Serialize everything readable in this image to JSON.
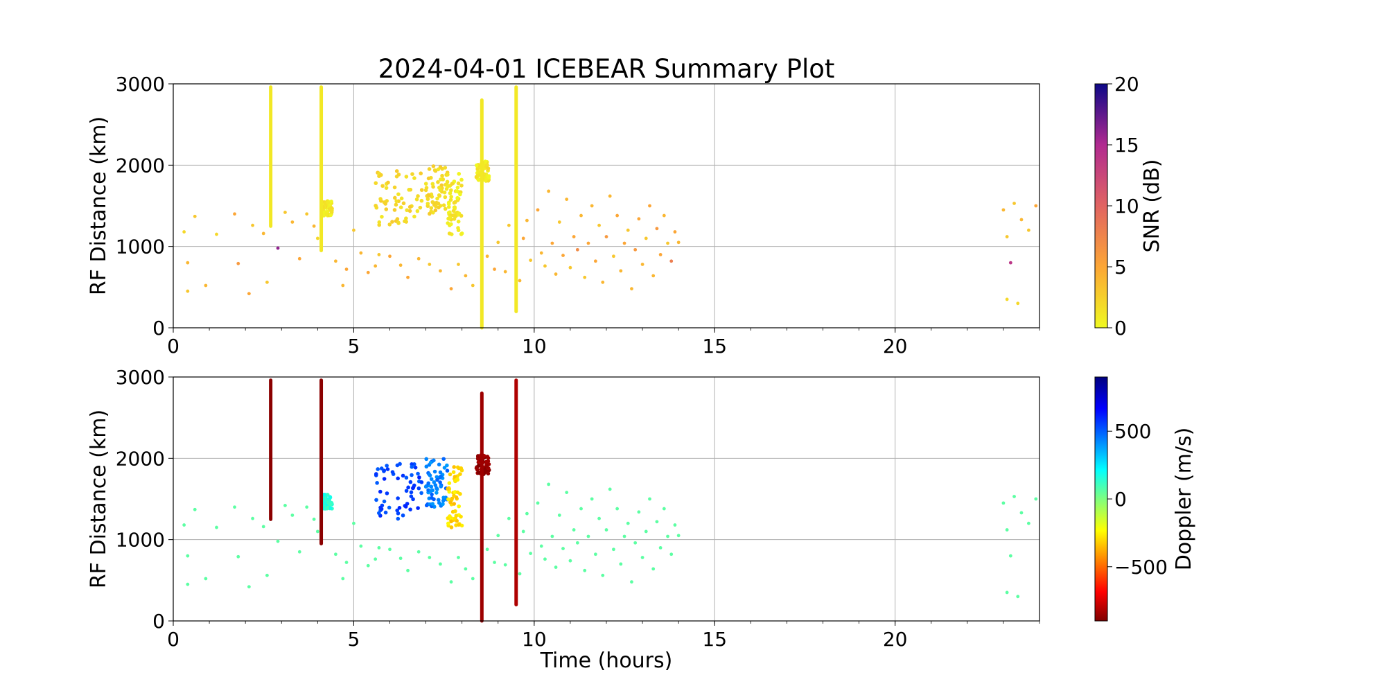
{
  "title": "2024-04-01 ICEBEAR Summary Plot",
  "chart_data": [
    {
      "type": "scatter",
      "name": "snr",
      "ylabel": "RF Distance (km)",
      "xlabel": "",
      "xlim": [
        0,
        24
      ],
      "ylim": [
        0,
        3000
      ],
      "xticks": [
        0,
        5,
        10,
        15,
        20
      ],
      "yticks": [
        0,
        1000,
        2000,
        3000
      ],
      "grid": true,
      "colorbar": {
        "label": "SNR (dB)",
        "range": [
          0,
          20
        ],
        "ticks": [
          0,
          5,
          10,
          15,
          20
        ],
        "colormap": "plasma_r"
      },
      "points": [
        [
          0.3,
          1180,
          2
        ],
        [
          0.4,
          450,
          3
        ],
        [
          0.4,
          800,
          4
        ],
        [
          0.6,
          1370,
          3
        ],
        [
          0.9,
          520,
          4
        ],
        [
          1.2,
          1150,
          2
        ],
        [
          1.7,
          1400,
          5
        ],
        [
          1.8,
          790,
          6
        ],
        [
          2.1,
          420,
          5
        ],
        [
          2.2,
          1260,
          3
        ],
        [
          2.5,
          1160,
          4
        ],
        [
          2.6,
          560,
          3
        ],
        [
          2.9,
          980,
          16
        ],
        [
          3.1,
          1420,
          3
        ],
        [
          3.3,
          1300,
          4
        ],
        [
          3.5,
          850,
          5
        ],
        [
          3.7,
          1400,
          3
        ],
        [
          3.9,
          1250,
          4
        ],
        [
          4.0,
          1100,
          2
        ],
        [
          4.5,
          820,
          4
        ],
        [
          4.7,
          520,
          4
        ],
        [
          4.8,
          720,
          5
        ],
        [
          5.0,
          1200,
          3
        ],
        [
          5.2,
          920,
          4
        ],
        [
          5.4,
          680,
          5
        ],
        [
          5.6,
          760,
          4
        ],
        [
          5.7,
          900,
          3
        ],
        [
          6.0,
          880,
          5
        ],
        [
          6.3,
          770,
          4
        ],
        [
          6.5,
          620,
          5
        ],
        [
          6.8,
          850,
          4
        ],
        [
          7.1,
          780,
          3
        ],
        [
          7.4,
          700,
          4
        ],
        [
          7.7,
          480,
          5
        ],
        [
          7.9,
          780,
          3
        ],
        [
          8.1,
          640,
          4
        ],
        [
          8.3,
          520,
          3
        ],
        [
          8.7,
          880,
          4
        ],
        [
          8.9,
          720,
          5
        ],
        [
          9.0,
          1050,
          3
        ],
        [
          9.2,
          690,
          4
        ],
        [
          9.3,
          1260,
          3
        ],
        [
          9.6,
          580,
          4
        ],
        [
          9.7,
          1100,
          5
        ],
        [
          9.8,
          1320,
          4
        ],
        [
          9.9,
          830,
          3
        ],
        [
          10.1,
          1450,
          5
        ],
        [
          10.2,
          920,
          4
        ],
        [
          10.3,
          760,
          3
        ],
        [
          10.4,
          1680,
          4
        ],
        [
          10.5,
          1040,
          5
        ],
        [
          10.6,
          660,
          4
        ],
        [
          10.7,
          1300,
          3
        ],
        [
          10.8,
          890,
          5
        ],
        [
          10.9,
          1580,
          4
        ],
        [
          11.0,
          740,
          3
        ],
        [
          11.1,
          1120,
          5
        ],
        [
          11.2,
          960,
          7
        ],
        [
          11.3,
          1380,
          4
        ],
        [
          11.4,
          620,
          3
        ],
        [
          11.5,
          1040,
          5
        ],
        [
          11.6,
          1500,
          4
        ],
        [
          11.7,
          820,
          5
        ],
        [
          11.8,
          1260,
          3
        ],
        [
          11.9,
          560,
          4
        ],
        [
          12.0,
          1120,
          6
        ],
        [
          12.1,
          1620,
          4
        ],
        [
          12.2,
          880,
          3
        ],
        [
          12.3,
          1380,
          5
        ],
        [
          12.4,
          700,
          4
        ],
        [
          12.5,
          1040,
          5
        ],
        [
          12.6,
          1200,
          3
        ],
        [
          12.7,
          480,
          4
        ],
        [
          12.8,
          960,
          6
        ],
        [
          12.9,
          1340,
          5
        ],
        [
          13.0,
          780,
          4
        ],
        [
          13.1,
          1100,
          3
        ],
        [
          13.2,
          1500,
          5
        ],
        [
          13.3,
          640,
          4
        ],
        [
          13.4,
          1220,
          6
        ],
        [
          13.5,
          900,
          5
        ],
        [
          13.6,
          1380,
          4
        ],
        [
          13.7,
          1040,
          3
        ],
        [
          13.8,
          820,
          8
        ],
        [
          13.9,
          1180,
          5
        ],
        [
          14.0,
          1050,
          4
        ],
        [
          23.0,
          1450,
          4
        ],
        [
          23.1,
          1120,
          3
        ],
        [
          23.2,
          800,
          14
        ],
        [
          23.3,
          1530,
          3
        ],
        [
          23.5,
          1330,
          4
        ],
        [
          23.7,
          1200,
          3
        ],
        [
          23.9,
          1500,
          5
        ],
        [
          23.1,
          350,
          2
        ],
        [
          23.4,
          300,
          2
        ]
      ],
      "streaks": [
        {
          "x": 2.7,
          "y0": 1250,
          "y1": 2960,
          "c": 1
        },
        {
          "x": 4.1,
          "y0": 950,
          "y1": 2960,
          "c": 1
        },
        {
          "x": 8.55,
          "y0": 0,
          "y1": 2800,
          "c": 1
        },
        {
          "x": 9.5,
          "y0": 200,
          "y1": 2960,
          "c": 1
        }
      ],
      "clusters": [
        {
          "x0": 5.6,
          "x1": 6.9,
          "y0": 1250,
          "y1": 1950,
          "c": 2
        },
        {
          "x0": 7.0,
          "x1": 7.6,
          "y0": 1400,
          "y1": 2000,
          "c": 2
        },
        {
          "x0": 7.6,
          "x1": 8.0,
          "y0": 1150,
          "y1": 1900,
          "c": 1
        },
        {
          "x0": 8.4,
          "x1": 8.75,
          "y0": 1800,
          "y1": 2050,
          "c": 1
        },
        {
          "x0": 4.15,
          "x1": 4.4,
          "y0": 1380,
          "y1": 1560,
          "c": 1
        }
      ]
    },
    {
      "type": "scatter",
      "name": "doppler",
      "ylabel": "RF Distance (km)",
      "xlabel": "Time (hours)",
      "xlim": [
        0,
        24
      ],
      "ylim": [
        0,
        3000
      ],
      "xticks": [
        0,
        5,
        10,
        15,
        20
      ],
      "yticks": [
        0,
        1000,
        2000,
        3000
      ],
      "grid": true,
      "colorbar": {
        "label": "Doppler (m/s)",
        "range": [
          -900,
          900
        ],
        "ticks": [
          -500,
          0,
          500
        ],
        "colormap": "jet_r"
      },
      "background_doppler": 60,
      "streaks": [
        {
          "x": 2.7,
          "y0": 1250,
          "y1": 2960,
          "c": -880
        },
        {
          "x": 4.1,
          "y0": 950,
          "y1": 2960,
          "c": -880
        },
        {
          "x": 8.55,
          "y0": 0,
          "y1": 2800,
          "c": -850
        },
        {
          "x": 9.5,
          "y0": 200,
          "y1": 2960,
          "c": -820
        }
      ],
      "clusters": [
        {
          "x0": 5.6,
          "x1": 6.9,
          "y0": 1250,
          "y1": 1950,
          "c": 550
        },
        {
          "x0": 7.0,
          "x1": 7.6,
          "y0": 1400,
          "y1": 2000,
          "c": 450
        },
        {
          "x0": 7.6,
          "x1": 8.0,
          "y0": 1150,
          "y1": 1900,
          "c": -300
        },
        {
          "x0": 8.4,
          "x1": 8.75,
          "y0": 1800,
          "y1": 2050,
          "c": -880
        },
        {
          "x0": 4.15,
          "x1": 4.4,
          "y0": 1380,
          "y1": 1560,
          "c": 150
        }
      ]
    }
  ]
}
